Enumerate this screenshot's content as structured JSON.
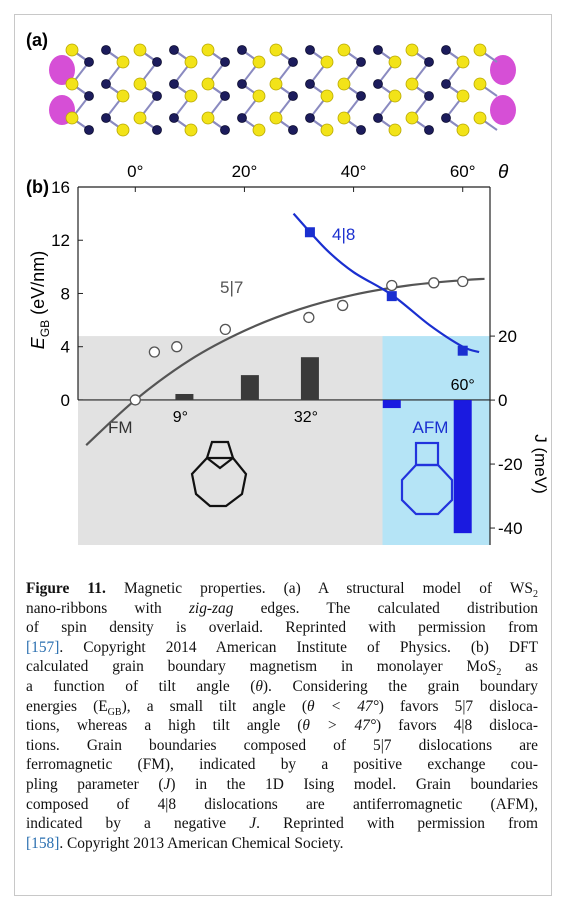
{
  "panel_a": {
    "label": "(a)"
  },
  "chart_data": {
    "type": "combo",
    "panel_label": "(b)",
    "xlabel": "θ",
    "ylabel": {
      "symbol": "E",
      "sub": "GB",
      "unit": " (eV/nm)"
    },
    "y2label": "J (meV)",
    "xlim": [
      -10.5,
      65
    ],
    "ylim": [
      -10.9,
      16
    ],
    "y2lim": [
      -45.3,
      66.6
    ],
    "xticks": [
      {
        "value": 0,
        "label": "0°"
      },
      {
        "value": 20,
        "label": "20°"
      },
      {
        "value": 40,
        "label": "40°"
      },
      {
        "value": 60,
        "label": "60°"
      }
    ],
    "yticks": [
      0,
      4,
      8,
      12,
      16
    ],
    "y2ticks": [
      20,
      0,
      -20,
      -40
    ],
    "regions": [
      {
        "name": "FM",
        "x": [
          -10.5,
          45.3
        ],
        "y2": [
          -45.3,
          20
        ],
        "color": "#e2e2e2",
        "text_color": "#333333"
      },
      {
        "name": "AFM",
        "x": [
          45.3,
          65
        ],
        "y2": [
          -45.3,
          20
        ],
        "color": "#b5e4f6",
        "text_color": "#1a2fd0"
      }
    ],
    "series": [
      {
        "name": "5|7",
        "marker": "circle",
        "color": "#555555",
        "x": [
          0,
          3.5,
          7.6,
          16.5,
          31.8,
          38,
          47,
          54.7,
          60
        ],
        "values": [
          0,
          3.6,
          4.0,
          5.3,
          6.2,
          7.1,
          8.6,
          8.8,
          8.9
        ],
        "fit_x": [
          -9,
          0,
          10,
          20,
          30,
          40,
          50,
          60,
          64
        ],
        "fit_values": [
          -3.4,
          0,
          3.0,
          5.2,
          6.8,
          7.9,
          8.6,
          9.0,
          9.1
        ]
      },
      {
        "name": "4|8",
        "marker": "square",
        "color": "#1a2fd0",
        "x": [
          32,
          47,
          60
        ],
        "values": [
          12.6,
          7.8,
          3.7
        ],
        "fit_x": [
          29,
          35,
          40,
          47,
          54,
          60,
          63
        ],
        "fit_values": [
          14,
          11.3,
          9.6,
          7.9,
          5.6,
          4.0,
          3.6
        ]
      }
    ],
    "bars": {
      "axis": "y2",
      "x": [
        9,
        21,
        32,
        47,
        60
      ],
      "values": [
        1.9,
        7.8,
        13.4,
        -2.5,
        -41.6
      ],
      "colors": [
        "#3a3a3a",
        "#3a3a3a",
        "#3a3a3a",
        "#1a1ae0",
        "#1a1ae0"
      ],
      "x_labels": [
        "9°",
        null,
        "32°",
        null,
        "60°"
      ]
    }
  },
  "caption": {
    "lines": [
      [
        "Figure 11.",
        " Magnetic properties. (a) A structural model of WS",
        "2"
      ],
      [
        "nano-ribbons with ",
        "zig-zag",
        " edges. The calculated distribution"
      ],
      [
        "of spin density is overlaid. Reprinted with permission from"
      ],
      [
        "[157]",
        ". Copyright 2014 American Institute of Physics. (b) DFT"
      ],
      [
        "calculated grain boundary magnetism in monolayer MoS",
        "2",
        " as"
      ],
      [
        "a function of tilt angle (",
        "θ",
        "). Considering the grain boundary"
      ],
      [
        "energies (E",
        "GB",
        "), a small tilt angle (",
        "θ < 47°",
        ") favors 5|7 disloca-"
      ],
      [
        "tions, whereas a high tilt angle (",
        "θ > 47°",
        ") favors 4|8 disloca-"
      ],
      [
        "tions. Grain boundaries composed of 5|7 dislocations are"
      ],
      [
        "ferromagnetic (FM), indicated by a positive exchange cou-"
      ],
      [
        "pling parameter (",
        "J",
        ") in the 1D Ising model. Grain boundaries"
      ],
      [
        "composed of 4|8 dislocations are antiferromagnetic (AFM),"
      ],
      [
        "indicated by a negative ",
        "J",
        ". Reprinted with permission from"
      ],
      [
        "[158]",
        ". Copyright 2013 American Chemical Society."
      ]
    ]
  }
}
